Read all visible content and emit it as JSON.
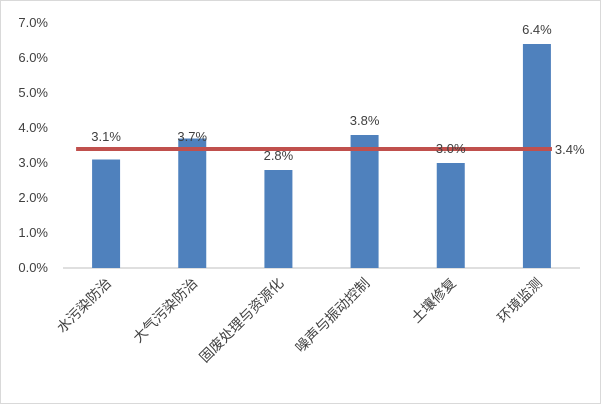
{
  "chart_data": {
    "type": "bar",
    "categories": [
      "水污染防治",
      "大气污染防治",
      "固废处理与资源化",
      "噪声与振动控制",
      "土壤修复",
      "环境监测"
    ],
    "values": [
      3.1,
      3.7,
      2.8,
      3.8,
      3.0,
      6.4
    ],
    "value_labels": [
      "3.1%",
      "3.7%",
      "2.8%",
      "3.8%",
      "3.0%",
      "6.4%"
    ],
    "average": {
      "value": 3.4,
      "label": "3.4%"
    },
    "ylim": [
      0,
      7
    ],
    "yticks": [
      "0.0%",
      "1.0%",
      "2.0%",
      "3.0%",
      "4.0%",
      "5.0%",
      "6.0%",
      "7.0%"
    ],
    "grid": false,
    "legend": "none",
    "title": "",
    "xlabel": "",
    "ylabel": "",
    "colors": {
      "bar": "#4f81bd",
      "average_line": "#c0504d",
      "axis": "#bfbfbf"
    }
  }
}
